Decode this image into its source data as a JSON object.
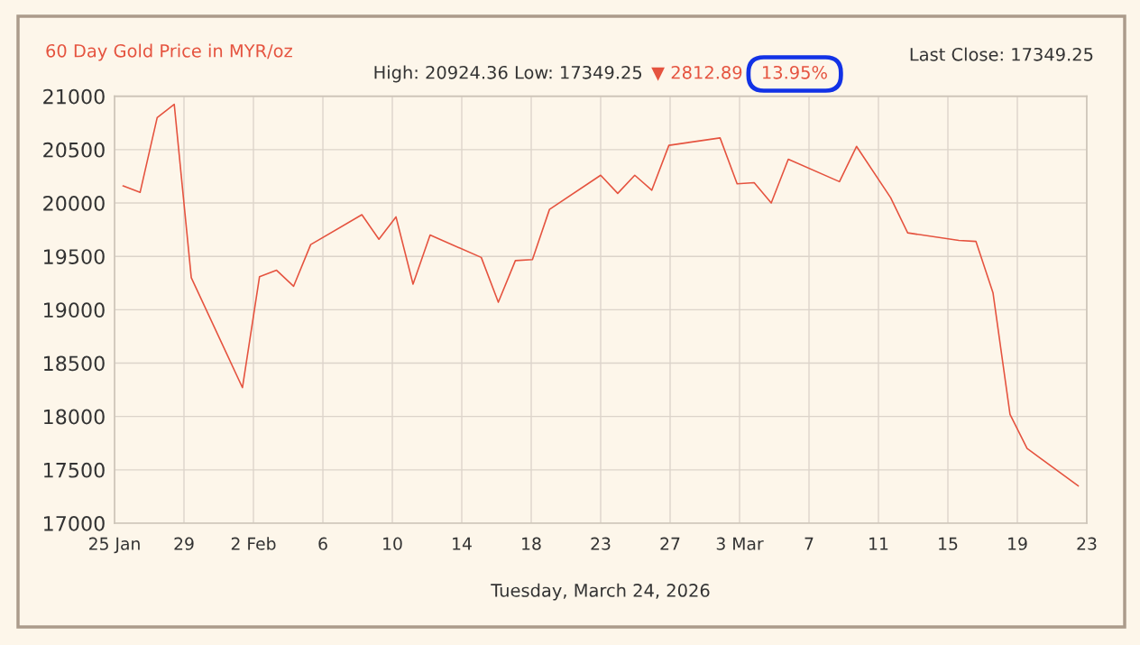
{
  "chart_data": {
    "type": "line",
    "title": "60 Day Gold Price in MYR/oz",
    "subtitle": "High: 20924.36 Low: 17349.25",
    "annotations": [
      "▼ 2812.89",
      "13.95%",
      "Last Close: 17349.25"
    ],
    "xlabel": "Tuesday, March 24, 2026",
    "x": [
      "2026-01-26",
      "2026-01-27",
      "2026-01-28",
      "2026-01-29",
      "2026-01-30",
      "2026-02-02",
      "2026-02-03",
      "2026-02-04",
      "2026-02-05",
      "2026-02-06",
      "2026-02-09",
      "2026-02-10",
      "2026-02-11",
      "2026-02-12",
      "2026-02-13",
      "2026-02-16",
      "2026-02-17",
      "2026-02-18",
      "2026-02-19",
      "2026-02-20",
      "2026-02-23",
      "2026-02-24",
      "2026-02-25",
      "2026-02-26",
      "2026-02-27",
      "2026-03-02",
      "2026-03-03",
      "2026-03-04",
      "2026-03-05",
      "2026-03-06",
      "2026-03-09",
      "2026-03-10",
      "2026-03-12",
      "2026-03-13",
      "2026-03-16",
      "2026-03-17",
      "2026-03-18",
      "2026-03-19",
      "2026-03-20",
      "2026-03-23"
    ],
    "series": [
      {
        "color": "#e5533f",
        "values": [
          20160,
          20100,
          20800,
          20924.36,
          19300,
          18270,
          19310,
          19370,
          19220,
          19610,
          19890,
          19660,
          19870,
          19240,
          19700,
          19490,
          19070,
          19460,
          19470,
          19940,
          20260,
          20090,
          20260,
          20120,
          20540,
          20610,
          20180,
          20190,
          20000,
          20410,
          20200,
          20530,
          20050,
          19720,
          19650,
          19640,
          19160,
          18020,
          17700,
          17349.25
        ]
      }
    ],
    "xlim": [
      "2026-01-25T12:00",
      "2026-03-23T12:00"
    ],
    "xticks": [
      {
        "value": "2026-01-25T12:00",
        "label": "25 Jan"
      },
      {
        "value": "2026-01-29T13:43",
        "label": "29"
      },
      {
        "value": "2026-02-02T15:26",
        "label": "2 Feb"
      },
      {
        "value": "2026-02-06T17:09",
        "label": "6"
      },
      {
        "value": "2026-02-10T18:51",
        "label": "10"
      },
      {
        "value": "2026-02-14T20:34",
        "label": "14"
      },
      {
        "value": "2026-02-18T22:17",
        "label": "18"
      },
      {
        "value": "2026-02-23T00:00",
        "label": "23"
      },
      {
        "value": "2026-02-27T01:43",
        "label": "27"
      },
      {
        "value": "2026-03-03T03:26",
        "label": "3 Mar"
      },
      {
        "value": "2026-03-07T05:09",
        "label": "7"
      },
      {
        "value": "2026-03-11T06:51",
        "label": "11"
      },
      {
        "value": "2026-03-15T08:34",
        "label": "15"
      },
      {
        "value": "2026-03-19T10:17",
        "label": "19"
      },
      {
        "value": "2026-03-23T12:00",
        "label": "23"
      }
    ],
    "ylim": [
      17000,
      21000
    ],
    "yticks": [
      17000,
      17500,
      18000,
      18500,
      19000,
      19500,
      20000,
      20500,
      21000
    ],
    "grid": true,
    "line_style": "solid"
  }
}
